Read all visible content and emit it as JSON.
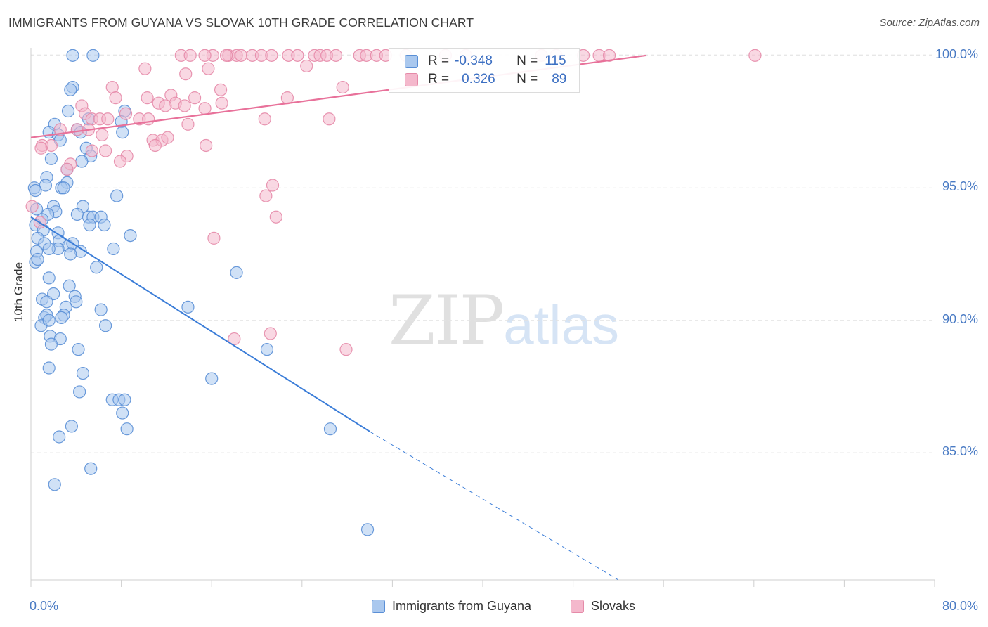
{
  "title": "IMMIGRANTS FROM GUYANA VS SLOVAK 10TH GRADE CORRELATION CHART",
  "source": "Source: ZipAtlas.com",
  "watermark": {
    "zip": "ZIP",
    "atlas": "atlas"
  },
  "colors": {
    "blue": "#3b7dd8",
    "blue_fill": "#aac8ee",
    "pink": "#e8719a",
    "pink_fill": "#f4b8cc",
    "tick_text": "#4a7bc4"
  },
  "legend_inset": {
    "row1": {
      "r_label": "R =",
      "r_value": "-0.348",
      "n_label": "N =",
      "n_value": "115"
    },
    "row2": {
      "r_label": "R =",
      "r_value": "0.326",
      "n_label": "N =",
      "n_value": "89"
    }
  },
  "legend_bottom": {
    "series1": "Immigrants from Guyana",
    "series2": "Slovaks"
  },
  "chart_data": {
    "type": "scatter",
    "title": "IMMIGRANTS FROM GUYANA VS SLOVAK 10TH GRADE CORRELATION CHART",
    "xlabel": "",
    "ylabel": "10th Grade",
    "xlim": [
      0,
      80
    ],
    "ylim": [
      80.2,
      100.5
    ],
    "x_tick_labels": [
      "0.0%",
      "80.0%"
    ],
    "y_ticks": [
      85,
      90,
      95,
      100
    ],
    "y_tick_labels": [
      "85.0%",
      "90.0%",
      "95.0%",
      "100.0%"
    ],
    "grid": true,
    "legend_placement": "bottom",
    "series": [
      {
        "name": "Immigrants from Guyana",
        "color": "#3b7dd8",
        "R": -0.348,
        "N": 115,
        "trendline": {
          "x": [
            0,
            30
          ],
          "y": [
            93.9,
            85.8
          ],
          "dashed_extension_to": [
            52,
            80.2
          ]
        },
        "points": [
          [
            3.7,
            100
          ],
          [
            5.5,
            100
          ],
          [
            3.7,
            98.8
          ],
          [
            3.5,
            98.7
          ],
          [
            3.3,
            97.9
          ],
          [
            2.1,
            97.4
          ],
          [
            1.6,
            97.1
          ],
          [
            2.4,
            97.0
          ],
          [
            2.6,
            96.8
          ],
          [
            4.1,
            97.2
          ],
          [
            4.4,
            97.1
          ],
          [
            5.1,
            97.6
          ],
          [
            8.3,
            97.9
          ],
          [
            8.0,
            97.5
          ],
          [
            8.1,
            97.1
          ],
          [
            4.9,
            96.5
          ],
          [
            5.3,
            96.2
          ],
          [
            4.5,
            96.0
          ],
          [
            1.8,
            96.1
          ],
          [
            3.2,
            95.7
          ],
          [
            1.4,
            95.4
          ],
          [
            3.2,
            95.2
          ],
          [
            1.3,
            95.1
          ],
          [
            0.3,
            95.0
          ],
          [
            2.7,
            95.0
          ],
          [
            2.9,
            95.0
          ],
          [
            0.4,
            94.9
          ],
          [
            7.6,
            94.7
          ],
          [
            0.5,
            94.2
          ],
          [
            2.0,
            94.3
          ],
          [
            4.6,
            94.3
          ],
          [
            2.2,
            94.1
          ],
          [
            1.5,
            94.0
          ],
          [
            4.1,
            94.0
          ],
          [
            5.1,
            93.9
          ],
          [
            5.5,
            93.9
          ],
          [
            6.2,
            93.9
          ],
          [
            1.0,
            93.8
          ],
          [
            0.4,
            93.6
          ],
          [
            5.2,
            93.6
          ],
          [
            6.5,
            93.6
          ],
          [
            1.1,
            93.4
          ],
          [
            2.4,
            93.3
          ],
          [
            0.6,
            93.1
          ],
          [
            1.2,
            92.9
          ],
          [
            2.5,
            93.0
          ],
          [
            3.3,
            92.8
          ],
          [
            3.7,
            92.9
          ],
          [
            2.4,
            92.7
          ],
          [
            1.6,
            92.7
          ],
          [
            0.5,
            92.6
          ],
          [
            4.4,
            92.6
          ],
          [
            7.3,
            92.7
          ],
          [
            3.5,
            92.5
          ],
          [
            0.4,
            92.2
          ],
          [
            0.6,
            92.3
          ],
          [
            8.8,
            93.2
          ],
          [
            5.8,
            92.0
          ],
          [
            18.2,
            91.8
          ],
          [
            1.6,
            91.6
          ],
          [
            3.4,
            91.3
          ],
          [
            2.0,
            91.0
          ],
          [
            3.9,
            90.9
          ],
          [
            1.0,
            90.8
          ],
          [
            1.4,
            90.7
          ],
          [
            4.0,
            90.7
          ],
          [
            3.1,
            90.5
          ],
          [
            6.2,
            90.4
          ],
          [
            13.9,
            90.5
          ],
          [
            1.2,
            90.1
          ],
          [
            1.4,
            90.2
          ],
          [
            2.9,
            90.2
          ],
          [
            0.9,
            89.8
          ],
          [
            1.6,
            90.0
          ],
          [
            2.7,
            90.1
          ],
          [
            6.6,
            89.8
          ],
          [
            1.7,
            89.4
          ],
          [
            2.6,
            89.3
          ],
          [
            1.8,
            89.1
          ],
          [
            4.2,
            88.9
          ],
          [
            20.9,
            88.9
          ],
          [
            1.6,
            88.2
          ],
          [
            4.6,
            88.0
          ],
          [
            16.0,
            87.8
          ],
          [
            4.3,
            87.3
          ],
          [
            7.2,
            87.0
          ],
          [
            7.8,
            87.0
          ],
          [
            8.3,
            87.0
          ],
          [
            8.1,
            86.5
          ],
          [
            8.5,
            85.9
          ],
          [
            3.6,
            86.0
          ],
          [
            26.5,
            85.9
          ],
          [
            2.5,
            85.6
          ],
          [
            5.3,
            84.4
          ],
          [
            2.1,
            83.8
          ],
          [
            29.8,
            82.1
          ]
        ]
      },
      {
        "name": "Slovaks",
        "color": "#e8719a",
        "R": 0.326,
        "N": 89,
        "trendline": {
          "x": [
            0,
            54.5
          ],
          "y": [
            96.9,
            100.0
          ]
        },
        "points": [
          [
            13.3,
            100
          ],
          [
            14.1,
            100
          ],
          [
            16.1,
            100
          ],
          [
            17.5,
            100
          ],
          [
            18.2,
            100
          ],
          [
            18.6,
            100
          ],
          [
            19.6,
            100
          ],
          [
            20.4,
            100
          ],
          [
            21.3,
            100
          ],
          [
            22.8,
            100
          ],
          [
            23.6,
            100
          ],
          [
            25.1,
            100
          ],
          [
            25.6,
            100
          ],
          [
            26.2,
            100
          ],
          [
            27.0,
            100
          ],
          [
            29.1,
            100
          ],
          [
            29.7,
            100
          ],
          [
            30.6,
            100
          ],
          [
            31.4,
            100
          ],
          [
            33.2,
            100
          ],
          [
            36.7,
            100
          ],
          [
            38.5,
            100
          ],
          [
            45.2,
            100
          ],
          [
            46.5,
            100
          ],
          [
            48.9,
            100
          ],
          [
            50.3,
            100
          ],
          [
            51.2,
            100
          ],
          [
            64.1,
            100
          ],
          [
            15.4,
            100
          ],
          [
            17.3,
            100
          ],
          [
            24.4,
            99.6
          ],
          [
            10.1,
            99.5
          ],
          [
            15.7,
            99.5
          ],
          [
            13.7,
            99.3
          ],
          [
            27.6,
            98.8
          ],
          [
            7.2,
            98.8
          ],
          [
            16.8,
            98.7
          ],
          [
            12.4,
            98.5
          ],
          [
            7.5,
            98.4
          ],
          [
            10.3,
            98.4
          ],
          [
            14.5,
            98.4
          ],
          [
            22.7,
            98.4
          ],
          [
            11.3,
            98.2
          ],
          [
            12.8,
            98.2
          ],
          [
            16.9,
            98.2
          ],
          [
            4.5,
            98.1
          ],
          [
            11.9,
            98.1
          ],
          [
            13.6,
            98.1
          ],
          [
            15.4,
            98.0
          ],
          [
            4.8,
            97.8
          ],
          [
            8.4,
            97.8
          ],
          [
            5.4,
            97.6
          ],
          [
            6.1,
            97.6
          ],
          [
            6.8,
            97.6
          ],
          [
            9.6,
            97.6
          ],
          [
            10.4,
            97.6
          ],
          [
            20.7,
            97.6
          ],
          [
            26.4,
            97.6
          ],
          [
            13.9,
            97.4
          ],
          [
            2.6,
            97.2
          ],
          [
            4.1,
            97.2
          ],
          [
            5.1,
            97.2
          ],
          [
            6.3,
            97.0
          ],
          [
            10.8,
            96.8
          ],
          [
            11.6,
            96.8
          ],
          [
            12.1,
            96.9
          ],
          [
            1.8,
            96.6
          ],
          [
            1.0,
            96.6
          ],
          [
            11.0,
            96.6
          ],
          [
            15.5,
            96.6
          ],
          [
            5.4,
            96.4
          ],
          [
            6.6,
            96.4
          ],
          [
            8.5,
            96.2
          ],
          [
            7.9,
            96.0
          ],
          [
            3.5,
            95.9
          ],
          [
            3.2,
            95.7
          ],
          [
            0.9,
            96.5
          ],
          [
            21.4,
            95.1
          ],
          [
            20.8,
            94.7
          ],
          [
            0.1,
            94.3
          ],
          [
            21.7,
            93.9
          ],
          [
            0.8,
            93.7
          ],
          [
            16.2,
            93.1
          ],
          [
            21.2,
            89.5
          ],
          [
            18.0,
            89.3
          ],
          [
            27.9,
            88.9
          ]
        ]
      }
    ]
  }
}
